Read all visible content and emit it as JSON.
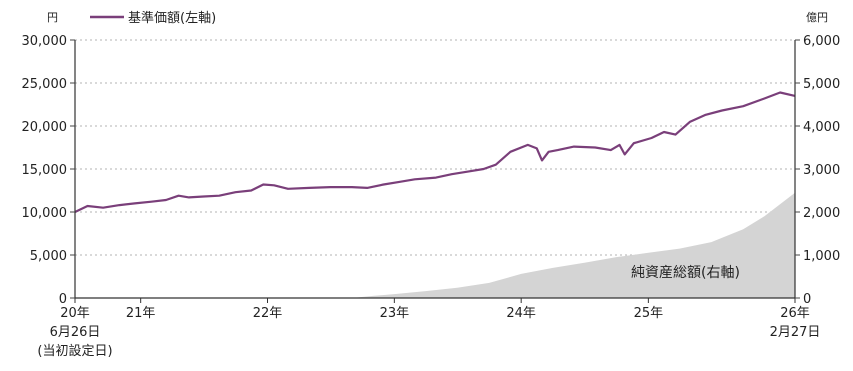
{
  "chart_data": {
    "type": "line",
    "left_unit": "円",
    "right_unit": "億円",
    "legend": [
      {
        "name": "基準価額(左軸)",
        "color": "#7a3f7a"
      }
    ],
    "area_label": "純資産総額(右軸)",
    "y_left": {
      "range": [
        0,
        30000
      ],
      "ticks": [
        "30,000",
        "25,000",
        "20,000",
        "15,000",
        "10,000",
        "5,000",
        "0"
      ]
    },
    "y_right": {
      "range": [
        0,
        6000
      ],
      "ticks": [
        "6,000",
        "5,000",
        "4,000",
        "3,000",
        "2,000",
        "1,000",
        "0"
      ]
    },
    "x_labels": [
      {
        "line1": "20年",
        "line2": "6月26日",
        "line3": "(当初設定日)",
        "date": "2020-06-26"
      },
      {
        "line1": "21年",
        "line2": "",
        "line3": "",
        "date": "2021-01-01"
      },
      {
        "line1": "22年",
        "line2": "",
        "line3": "",
        "date": "2022-01-01"
      },
      {
        "line1": "23年",
        "line2": "",
        "line3": "",
        "date": "2023-01-01"
      },
      {
        "line1": "24年",
        "line2": "",
        "line3": "",
        "date": "2024-01-01"
      },
      {
        "line1": "25年",
        "line2": "",
        "line3": "",
        "date": "2025-01-01"
      },
      {
        "line1": "26年",
        "line2": "2月27日",
        "line3": "",
        "date": "2026-02-27"
      }
    ],
    "x_range": [
      "2020-06-26",
      "2026-02-27"
    ],
    "grid": "horizontal dashed",
    "series": [
      {
        "name": "基準価額(左軸)",
        "axis": "left",
        "color": "#7a3f7a",
        "points": [
          [
            "2020-06-26",
            10000
          ],
          [
            "2020-08-01",
            10700
          ],
          [
            "2020-09-15",
            10500
          ],
          [
            "2020-11-01",
            10800
          ],
          [
            "2020-12-15",
            11000
          ],
          [
            "2021-02-01",
            11200
          ],
          [
            "2021-03-15",
            11400
          ],
          [
            "2021-04-20",
            11900
          ],
          [
            "2021-05-20",
            11700
          ],
          [
            "2021-07-01",
            11800
          ],
          [
            "2021-08-15",
            11900
          ],
          [
            "2021-10-01",
            12300
          ],
          [
            "2021-11-15",
            12500
          ],
          [
            "2021-12-20",
            13200
          ],
          [
            "2022-01-20",
            13100
          ],
          [
            "2022-03-01",
            12700
          ],
          [
            "2022-05-01",
            12800
          ],
          [
            "2022-07-01",
            12900
          ],
          [
            "2022-09-01",
            12900
          ],
          [
            "2022-10-15",
            12800
          ],
          [
            "2022-12-01",
            13200
          ],
          [
            "2023-01-15",
            13500
          ],
          [
            "2023-03-01",
            13800
          ],
          [
            "2023-05-01",
            14000
          ],
          [
            "2023-06-15",
            14400
          ],
          [
            "2023-08-01",
            14700
          ],
          [
            "2023-09-15",
            15000
          ],
          [
            "2023-10-20",
            15500
          ],
          [
            "2023-12-01",
            17000
          ],
          [
            "2024-01-20",
            17800
          ],
          [
            "2024-02-15",
            17400
          ],
          [
            "2024-03-01",
            16000
          ],
          [
            "2024-03-20",
            17000
          ],
          [
            "2024-04-15",
            17200
          ],
          [
            "2024-06-01",
            17600
          ],
          [
            "2024-08-01",
            17500
          ],
          [
            "2024-09-15",
            17200
          ],
          [
            "2024-10-10",
            17800
          ],
          [
            "2024-10-25",
            16700
          ],
          [
            "2024-11-20",
            18000
          ],
          [
            "2025-01-10",
            18600
          ],
          [
            "2025-02-15",
            19300
          ],
          [
            "2025-03-20",
            19000
          ],
          [
            "2025-05-01",
            20500
          ],
          [
            "2025-06-15",
            21300
          ],
          [
            "2025-08-01",
            21800
          ],
          [
            "2025-10-01",
            22300
          ],
          [
            "2025-12-01",
            23200
          ],
          [
            "2026-01-15",
            23900
          ],
          [
            "2026-02-27",
            23500
          ]
        ]
      },
      {
        "name": "純資産総額(右軸)",
        "axis": "right",
        "color": "#d4d4d4",
        "points": [
          [
            "2020-06-26",
            0
          ],
          [
            "2022-09-01",
            0
          ],
          [
            "2022-11-01",
            50
          ],
          [
            "2023-01-01",
            90
          ],
          [
            "2023-04-01",
            160
          ],
          [
            "2023-07-01",
            240
          ],
          [
            "2023-10-01",
            350
          ],
          [
            "2024-01-01",
            560
          ],
          [
            "2024-04-01",
            700
          ],
          [
            "2024-07-01",
            820
          ],
          [
            "2024-10-01",
            950
          ],
          [
            "2025-01-01",
            1050
          ],
          [
            "2025-04-01",
            1150
          ],
          [
            "2025-07-01",
            1300
          ],
          [
            "2025-10-01",
            1600
          ],
          [
            "2025-12-01",
            1900
          ],
          [
            "2026-02-27",
            2450
          ]
        ]
      }
    ]
  }
}
